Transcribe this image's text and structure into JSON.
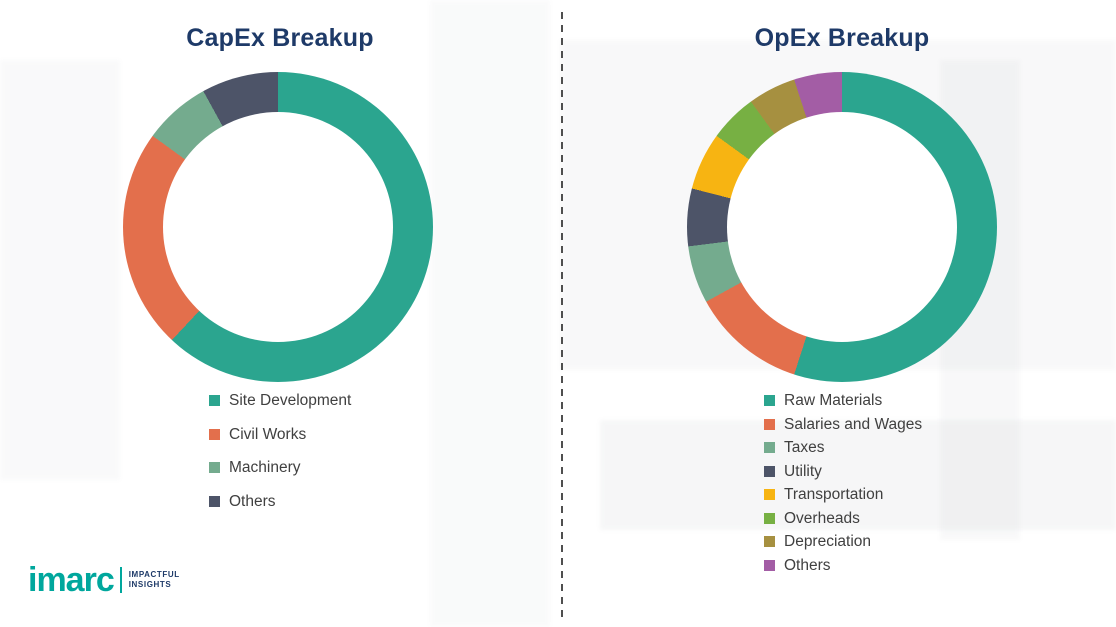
{
  "logo": {
    "brand": "imarc",
    "tagline_line1": "IMPACTFUL",
    "tagline_line2": "INSIGHTS"
  },
  "chart_data": [
    {
      "type": "pie",
      "subtype": "donut",
      "title": "CapEx Breakup",
      "categories": [
        "Site Development",
        "Civil Works",
        "Machinery",
        "Others"
      ],
      "values": [
        62,
        23,
        7,
        8
      ],
      "colors": [
        "#2BA58F",
        "#E36F4C",
        "#74AB8E",
        "#4D5468"
      ],
      "unit": "percent",
      "legend_position": "bottom",
      "start_angle_deg": 0,
      "direction": "clockwise"
    },
    {
      "type": "pie",
      "subtype": "donut",
      "title": "OpEx Breakup",
      "categories": [
        "Raw Materials",
        "Salaries and Wages",
        "Taxes",
        "Utility",
        "Transportation",
        "Overheads",
        "Depreciation",
        "Others"
      ],
      "values": [
        55,
        12,
        6,
        6,
        6,
        5,
        5,
        5
      ],
      "colors": [
        "#2BA58F",
        "#E36F4C",
        "#74AB8E",
        "#4D5468",
        "#F7B412",
        "#77B043",
        "#A69040",
        "#A35DA5"
      ],
      "unit": "percent",
      "legend_position": "bottom",
      "start_angle_deg": 0,
      "direction": "clockwise"
    }
  ]
}
